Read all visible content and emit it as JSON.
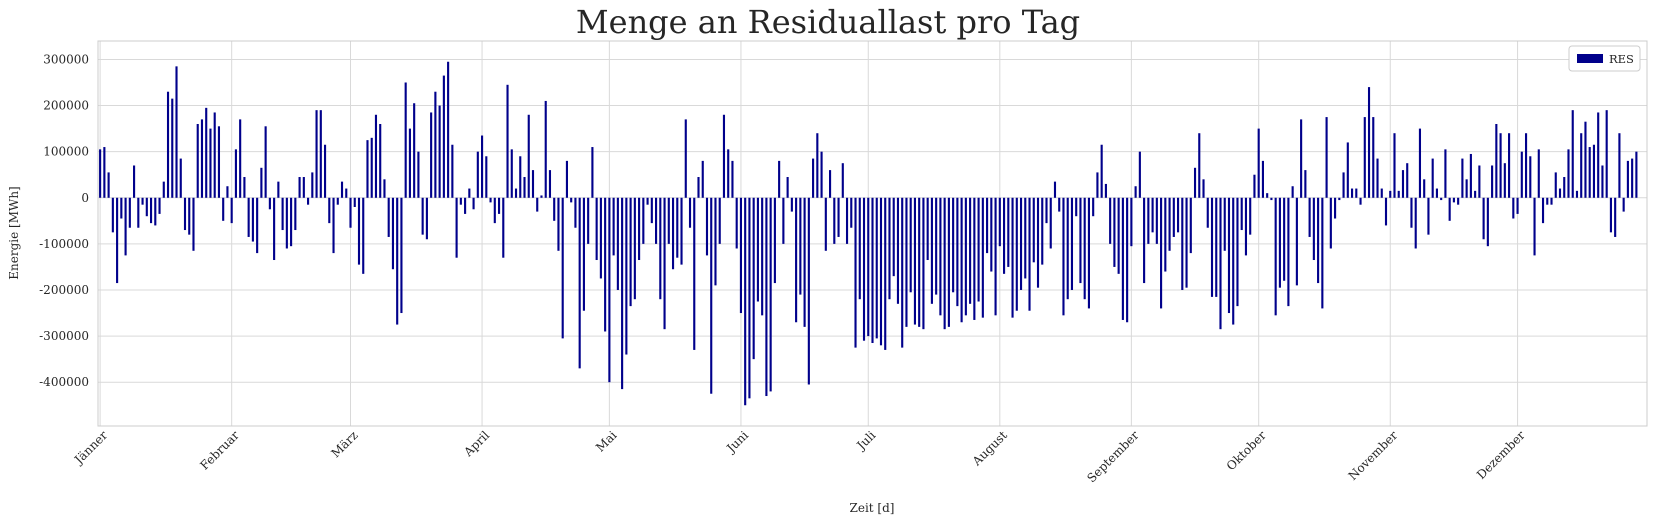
{
  "chart_data": {
    "type": "bar",
    "title": "Menge an Residuallast pro Tag",
    "xlabel": "Zeit [d]",
    "ylabel": "Energie [MWh]",
    "ylim": [
      -495000,
      340000
    ],
    "yticks": [
      300000,
      200000,
      100000,
      0,
      -100000,
      -200000,
      -300000,
      -400000
    ],
    "ytick_labels": [
      "300000",
      "200000",
      "100000",
      "0",
      "-100000",
      "-200000",
      "-300000",
      "-400000"
    ],
    "month_labels": [
      "Jänner",
      "Februar",
      "März",
      "April",
      "Mai",
      "Juni",
      "Juli",
      "August",
      "September",
      "Oktober",
      "November",
      "Dezember"
    ],
    "month_start_days": [
      0,
      31,
      59,
      90,
      120,
      151,
      181,
      212,
      243,
      273,
      304,
      334
    ],
    "days": 365,
    "grid": true,
    "legend_position": "top-right",
    "bar_color": "#00008b",
    "series": [
      {
        "name": "RES",
        "values": [
          105000,
          110000,
          55000,
          -75000,
          -185000,
          -45000,
          -125000,
          -65000,
          70000,
          -65000,
          -15000,
          -40000,
          -55000,
          -60000,
          -35000,
          35000,
          230000,
          215000,
          285000,
          85000,
          -70000,
          -80000,
          -115000,
          160000,
          170000,
          195000,
          150000,
          185000,
          155000,
          -50000,
          25000,
          -55000,
          105000,
          170000,
          45000,
          -85000,
          -95000,
          -120000,
          65000,
          155000,
          -25000,
          -135000,
          35000,
          -70000,
          -110000,
          -105000,
          -70000,
          45000,
          45000,
          -15000,
          55000,
          190000,
          190000,
          115000,
          -55000,
          -120000,
          -15000,
          35000,
          20000,
          -65000,
          -20000,
          -145000,
          -165000,
          125000,
          130000,
          180000,
          160000,
          40000,
          -85000,
          -155000,
          -275000,
          -250000,
          250000,
          150000,
          205000,
          100000,
          -80000,
          -90000,
          185000,
          230000,
          200000,
          265000,
          295000,
          115000,
          -130000,
          -15000,
          -35000,
          20000,
          -25000,
          100000,
          135000,
          90000,
          -10000,
          -55000,
          -35000,
          -130000,
          245000,
          105000,
          20000,
          90000,
          45000,
          180000,
          60000,
          -30000,
          5000,
          210000,
          60000,
          -50000,
          -115000,
          -305000,
          80000,
          -10000,
          -65000,
          -370000,
          -245000,
          -100000,
          110000,
          -135000,
          -175000,
          -290000,
          -400000,
          -125000,
          -200000,
          -415000,
          -340000,
          -235000,
          -220000,
          -135000,
          -100000,
          -15000,
          -55000,
          -100000,
          -220000,
          -285000,
          -100000,
          -155000,
          -130000,
          -145000,
          170000,
          -65000,
          -330000,
          45000,
          80000,
          -125000,
          -425000,
          -190000,
          -100000,
          180000,
          105000,
          80000,
          -110000,
          -250000,
          -450000,
          -435000,
          -350000,
          -225000,
          -255000,
          -430000,
          -420000,
          -185000,
          80000,
          -100000,
          45000,
          -30000,
          -270000,
          -210000,
          -280000,
          -405000,
          85000,
          140000,
          100000,
          -115000,
          60000,
          -100000,
          -85000,
          75000,
          -100000,
          -65000,
          -325000,
          -220000,
          -310000,
          -300000,
          -315000,
          -305000,
          -320000,
          -330000,
          -220000,
          -170000,
          -230000,
          -325000,
          -280000,
          -205000,
          -275000,
          -280000,
          -285000,
          -135000,
          -230000,
          -210000,
          -255000,
          -285000,
          -280000,
          -205000,
          -235000,
          -270000,
          -255000,
          -230000,
          -265000,
          -225000,
          -260000,
          -120000,
          -160000,
          -255000,
          -105000,
          -165000,
          -150000,
          -260000,
          -245000,
          -200000,
          -175000,
          -245000,
          -140000,
          -195000,
          -145000,
          -55000,
          -110000,
          35000,
          -30000,
          -255000,
          -220000,
          -200000,
          -40000,
          -185000,
          -220000,
          -240000,
          -40000,
          55000,
          115000,
          30000,
          -100000,
          -150000,
          -165000,
          -265000,
          -270000,
          -105000,
          25000,
          100000,
          -185000,
          -100000,
          -75000,
          -100000,
          -240000,
          -160000,
          -115000,
          -85000,
          -75000,
          -200000,
          -195000,
          -120000,
          65000,
          140000,
          40000,
          -65000,
          -215000,
          -215000,
          -285000,
          -115000,
          -250000,
          -275000,
          -235000,
          -70000,
          -125000,
          -80000,
          50000,
          150000,
          80000,
          10000,
          -5000,
          -255000,
          -195000,
          -180000,
          -235000,
          25000,
          -190000,
          170000,
          60000,
          -85000,
          -135000,
          -185000,
          -240000,
          175000,
          -110000,
          -45000,
          -5000,
          55000,
          120000,
          20000,
          20000,
          -15000,
          175000,
          240000,
          175000,
          85000,
          20000,
          -60000,
          15000,
          140000,
          15000,
          60000,
          75000,
          -65000,
          -110000,
          150000,
          40000,
          -80000,
          85000,
          20000,
          -5000,
          105000,
          -50000,
          -10000,
          -15000,
          85000,
          40000,
          95000,
          15000,
          70000,
          -90000,
          -105000,
          70000,
          160000,
          140000,
          75000,
          140000,
          -45000,
          -35000,
          100000,
          140000,
          90000,
          -125000,
          105000,
          -55000,
          -15000,
          -15000,
          55000,
          20000,
          45000,
          105000,
          190000,
          15000,
          140000,
          165000,
          110000,
          115000,
          185000,
          70000,
          190000,
          -75000,
          -85000,
          140000,
          -30000,
          80000,
          85000,
          100000
        ]
      }
    ]
  }
}
